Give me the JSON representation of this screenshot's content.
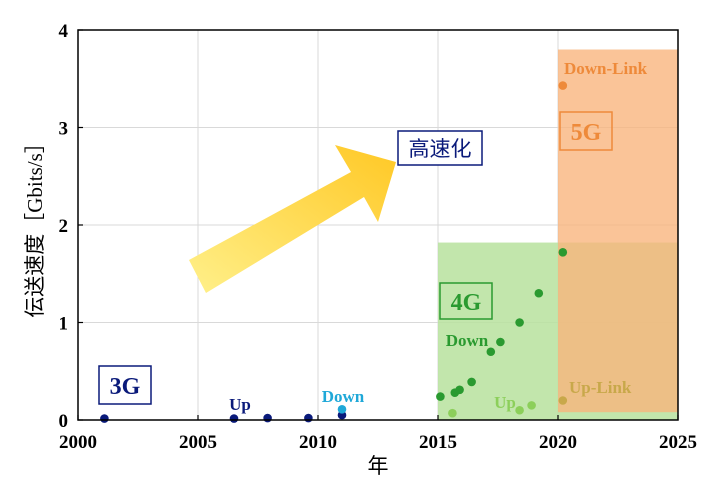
{
  "chart_data": {
    "type": "scatter",
    "title": "",
    "xlabel": "年",
    "ylabel": "伝送速度［Gbits/s］",
    "xlim": [
      2000,
      2025
    ],
    "ylim": [
      0,
      4
    ],
    "x_ticks": [
      "2000",
      "2005",
      "2010",
      "2015",
      "2020",
      "2025"
    ],
    "y_ticks": [
      "0",
      "1",
      "2",
      "3",
      "4"
    ],
    "grid": true,
    "series": [
      {
        "name": "Up",
        "group": "3G",
        "color": "#0a1a7a",
        "points": [
          [
            2001.1,
            0.015
          ],
          [
            2006.5,
            0.015
          ],
          [
            2007.9,
            0.02
          ],
          [
            2009.6,
            0.02
          ],
          [
            2011.0,
            0.05
          ]
        ]
      },
      {
        "name": "Down",
        "group": "3G",
        "color": "#1fa8d8",
        "points": [
          [
            2011.0,
            0.11
          ]
        ]
      },
      {
        "name": "Down",
        "group": "4G",
        "color": "#2a9a30",
        "points": [
          [
            2015.1,
            0.24
          ],
          [
            2015.7,
            0.28
          ],
          [
            2015.9,
            0.31
          ],
          [
            2016.4,
            0.39
          ],
          [
            2017.2,
            0.7
          ],
          [
            2017.6,
            0.8
          ],
          [
            2018.4,
            1.0
          ],
          [
            2019.2,
            1.3
          ],
          [
            2020.2,
            1.72
          ]
        ]
      },
      {
        "name": "Up",
        "group": "4G",
        "color": "#8ccf5a",
        "points": [
          [
            2015.6,
            0.07
          ],
          [
            2018.4,
            0.1
          ],
          [
            2018.9,
            0.15
          ]
        ]
      },
      {
        "name": "Down-Link",
        "group": "5G",
        "color": "#ee8a3a",
        "points": [
          [
            2020.2,
            3.43
          ]
        ]
      },
      {
        "name": "Up-Link",
        "group": "5G",
        "color": "#c8a84a",
        "points": [
          [
            2020.2,
            0.2
          ]
        ]
      }
    ],
    "regions": [
      {
        "name": "4G",
        "color": "#b7e29d",
        "x": [
          2015.0,
          2025.0
        ],
        "y": [
          0.0,
          1.82
        ]
      },
      {
        "name": "5G",
        "color": "#f9b37b",
        "x": [
          2020.0,
          2025.0
        ],
        "y": [
          0.08,
          3.8
        ]
      }
    ],
    "annotations": {
      "g3_box": "3G",
      "g4_box": "4G",
      "g5_box": "5G",
      "arrow_label": "高速化",
      "up_3g": "Up",
      "down_3g": "Down",
      "down_4g": "Down",
      "up_4g": "Up",
      "downlink_5g": "Down-Link",
      "uplink_5g": "Up-Link"
    },
    "colors": {
      "navy": "#0a1a7a",
      "cyan": "#1fa8d8",
      "green": "#2a9a30",
      "lightgreen": "#8ccf5a",
      "orange": "#ee8a3a",
      "olive": "#c8a84a",
      "arrow_start": "#fff08a",
      "arrow_end": "#ffc825"
    }
  }
}
